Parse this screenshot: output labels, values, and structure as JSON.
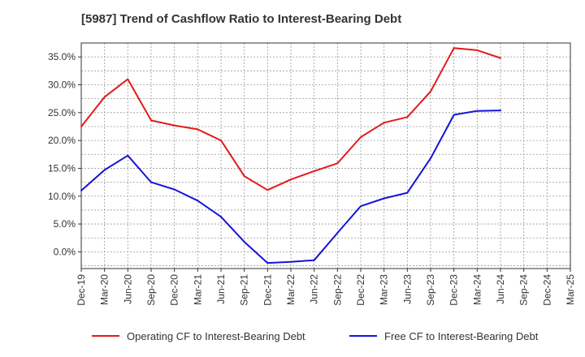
{
  "chart_data": {
    "type": "line",
    "title": "[5987]  Trend of Cashflow Ratio to Interest-Bearing Debt",
    "xlabel": "",
    "ylabel": "",
    "categories": [
      "Dec-19",
      "Mar-20",
      "Jun-20",
      "Sep-20",
      "Dec-20",
      "Mar-21",
      "Jun-21",
      "Sep-21",
      "Dec-21",
      "Mar-22",
      "Jun-22",
      "Sep-22",
      "Dec-22",
      "Mar-23",
      "Jun-23",
      "Sep-23",
      "Dec-23",
      "Mar-24",
      "Jun-24",
      "Sep-24",
      "Dec-24",
      "Mar-25"
    ],
    "ylim": [
      -3,
      37.5
    ],
    "yticks": [
      0,
      5,
      10,
      15,
      20,
      25,
      30,
      35
    ],
    "ytick_labels": [
      "0.0%",
      "5.0%",
      "10.0%",
      "15.0%",
      "20.0%",
      "25.0%",
      "30.0%",
      "35.0%"
    ],
    "grid": true,
    "legend_position": "bottom",
    "series": [
      {
        "name": "Operating CF to Interest-Bearing Debt",
        "color": "#e31a1c",
        "values": [
          22.5,
          27.8,
          31.0,
          23.6,
          22.7,
          22.0,
          20.0,
          13.6,
          11.1,
          13.0,
          14.5,
          15.9,
          20.6,
          23.2,
          24.2,
          28.8,
          36.6,
          36.2,
          34.8,
          null,
          null,
          null
        ]
      },
      {
        "name": "Free CF to Interest-Bearing Debt",
        "color": "#1515d6",
        "values": [
          11.0,
          14.7,
          17.3,
          12.5,
          11.2,
          9.2,
          6.3,
          1.8,
          -2.0,
          -1.8,
          -1.5,
          3.4,
          8.2,
          9.6,
          10.6,
          16.8,
          24.6,
          25.3,
          25.4,
          null,
          null,
          null
        ]
      }
    ]
  }
}
